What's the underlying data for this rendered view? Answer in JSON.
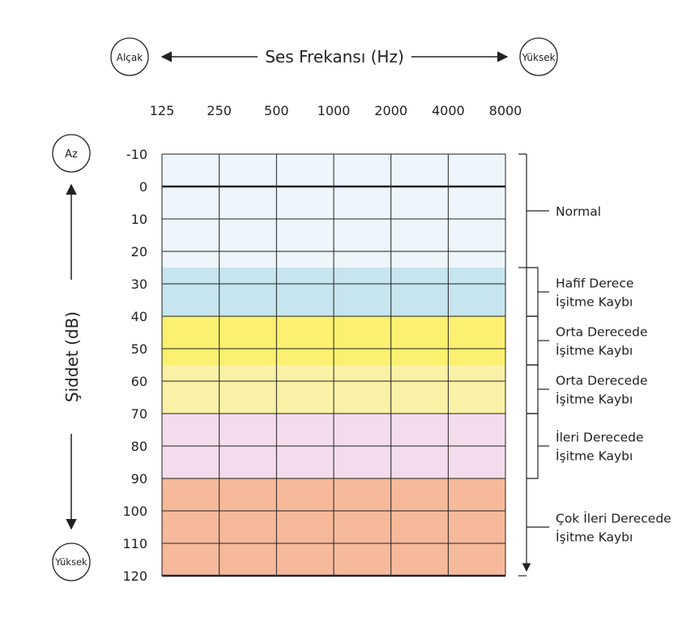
{
  "header": {
    "low_label": "Alçak",
    "title": "Ses Frekansı (Hz)",
    "high_label": "Yüksek"
  },
  "y_axis": {
    "label": "Şiddet (dB)",
    "top_label": "Az",
    "bottom_label": "Yüksek"
  },
  "chart_data": {
    "type": "heatmap",
    "x": [
      125,
      250,
      500,
      1000,
      2000,
      4000,
      8000
    ],
    "x_tick_labels": [
      "125",
      "250",
      "500",
      "1000",
      "2000",
      "4000",
      "8000"
    ],
    "y_ticks": [
      -10,
      0,
      10,
      20,
      30,
      40,
      50,
      60,
      70,
      80,
      90,
      100,
      110,
      120
    ],
    "y_tick_labels": [
      "-10",
      "0",
      "10",
      "20",
      "30",
      "40",
      "50",
      "60",
      "70",
      "80",
      "90",
      "100",
      "110",
      "120"
    ],
    "ylim": [
      -10,
      120
    ],
    "y_inverted": true,
    "x_scale": "log2",
    "grid": true,
    "reference_line": 0,
    "bands": [
      {
        "from": -10,
        "to": 25,
        "color": "#eef5fb"
      },
      {
        "from": 25,
        "to": 40,
        "color": "#c6e5ee"
      },
      {
        "from": 40,
        "to": 55,
        "color": "#fbf06f"
      },
      {
        "from": 55,
        "to": 70,
        "color": "#f9f1a5"
      },
      {
        "from": 70,
        "to": 90,
        "color": "#f3dceb"
      },
      {
        "from": 90,
        "to": 120,
        "color": "#f6b99a"
      }
    ],
    "categories": [
      {
        "from": -10,
        "to": 25,
        "label_lines": [
          "Normal"
        ]
      },
      {
        "from": 25,
        "to": 40,
        "label_lines": [
          "Hafif Derece",
          "İşitme Kaybı"
        ]
      },
      {
        "from": 40,
        "to": 55,
        "label_lines": [
          "Orta Derecede",
          "İşitme Kaybı"
        ]
      },
      {
        "from": 55,
        "to": 70,
        "label_lines": [
          "Orta Derecede",
          "İşitme Kaybı"
        ]
      },
      {
        "from": 70,
        "to": 90,
        "label_lines": [
          "İleri Derecede",
          "İşitme Kaybı"
        ]
      },
      {
        "from": 90,
        "to": 120,
        "label_lines": [
          "Çok İleri Derecede",
          "İşitme Kaybı"
        ]
      }
    ]
  }
}
